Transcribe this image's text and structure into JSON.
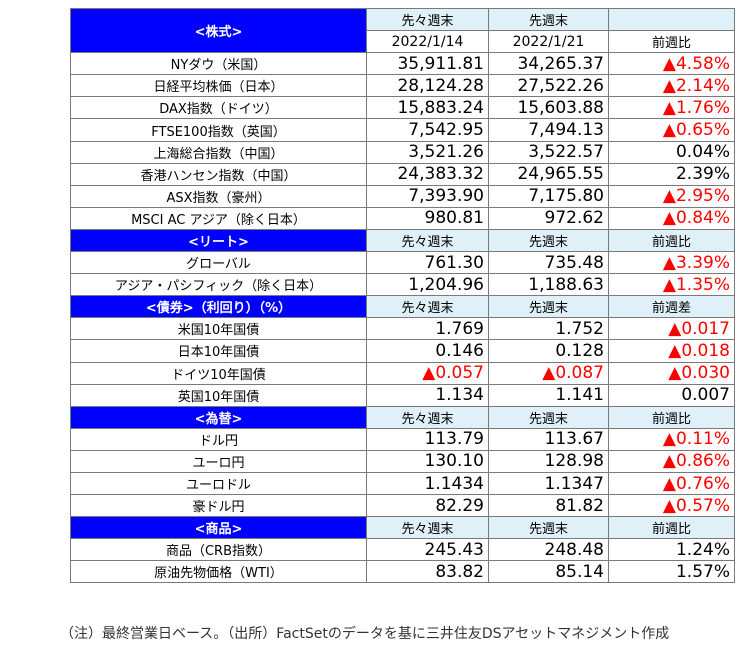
{
  "sections": [
    {
      "title": "<株式>",
      "col1_line1": "先々週末",
      "col1_line2": "2022/1/14",
      "col2_line1": "先週末",
      "col2_line2": "2022/1/21",
      "col3_line1": "",
      "col3_line2": "前週比",
      "rows": [
        {
          "name": "NYダウ（米国）",
          "v1": "35,911.81",
          "v2": "34,265.37",
          "chg": "▲4.58%",
          "neg1": false,
          "neg2": false,
          "negc": true
        },
        {
          "name": "日経平均株価（日本）",
          "v1": "28,124.28",
          "v2": "27,522.26",
          "chg": "▲2.14%",
          "neg1": false,
          "neg2": false,
          "negc": true
        },
        {
          "name": "DAX指数（ドイツ）",
          "v1": "15,883.24",
          "v2": "15,603.88",
          "chg": "▲1.76%",
          "neg1": false,
          "neg2": false,
          "negc": true
        },
        {
          "name": "FTSE100指数（英国）",
          "v1": "7,542.95",
          "v2": "7,494.13",
          "chg": "▲0.65%",
          "neg1": false,
          "neg2": false,
          "negc": true
        },
        {
          "name": "上海総合指数（中国）",
          "v1": "3,521.26",
          "v2": "3,522.57",
          "chg": "0.04%",
          "neg1": false,
          "neg2": false,
          "negc": false
        },
        {
          "name": "香港ハンセン指数（中国）",
          "v1": "24,383.32",
          "v2": "24,965.55",
          "chg": "2.39%",
          "neg1": false,
          "neg2": false,
          "negc": false
        },
        {
          "name": "ASX指数（豪州）",
          "v1": "7,393.90",
          "v2": "7,175.80",
          "chg": "▲2.95%",
          "neg1": false,
          "neg2": false,
          "negc": true
        },
        {
          "name": "MSCI AC アジア（除く日本）",
          "v1": "980.81",
          "v2": "972.62",
          "chg": "▲0.84%",
          "neg1": false,
          "neg2": false,
          "negc": true
        }
      ]
    },
    {
      "title": "<リート>",
      "col1": "先々週末",
      "col2": "先週末",
      "col3": "前週比",
      "rows": [
        {
          "name": "グローバル",
          "v1": "761.30",
          "v2": "735.48",
          "chg": "▲3.39%",
          "neg1": false,
          "neg2": false,
          "negc": true
        },
        {
          "name": "アジア・パシフィック（除く日本）",
          "v1": "1,204.96",
          "v2": "1,188.63",
          "chg": "▲1.35%",
          "neg1": false,
          "neg2": false,
          "negc": true
        }
      ]
    },
    {
      "title": "<債券>（利回り）（%）",
      "col1": "先々週末",
      "col2": "先週末",
      "col3": "前週差",
      "rows": [
        {
          "name": "米国10年国債",
          "v1": "1.769",
          "v2": "1.752",
          "chg": "▲0.017",
          "neg1": false,
          "neg2": false,
          "negc": true
        },
        {
          "name": "日本10年国債",
          "v1": "0.146",
          "v2": "0.128",
          "chg": "▲0.018",
          "neg1": false,
          "neg2": false,
          "negc": true
        },
        {
          "name": "ドイツ10年国債",
          "v1": "▲0.057",
          "v2": "▲0.087",
          "chg": "▲0.030",
          "neg1": true,
          "neg2": true,
          "negc": true
        },
        {
          "name": "英国10年国債",
          "v1": "1.134",
          "v2": "1.141",
          "chg": "0.007",
          "neg1": false,
          "neg2": false,
          "negc": false
        }
      ]
    },
    {
      "title": "<為替>",
      "col1": "先々週末",
      "col2": "先週末",
      "col3": "前週比",
      "rows": [
        {
          "name": "ドル円",
          "v1": "113.79",
          "v2": "113.67",
          "chg": "▲0.11%",
          "neg1": false,
          "neg2": false,
          "negc": true
        },
        {
          "name": "ユーロ円",
          "v1": "130.10",
          "v2": "128.98",
          "chg": "▲0.86%",
          "neg1": false,
          "neg2": false,
          "negc": true
        },
        {
          "name": "ユーロドル",
          "v1": "1.1434",
          "v2": "1.1347",
          "chg": "▲0.76%",
          "neg1": false,
          "neg2": false,
          "negc": true
        },
        {
          "name": "豪ドル円",
          "v1": "82.29",
          "v2": "81.82",
          "chg": "▲0.57%",
          "neg1": false,
          "neg2": false,
          "negc": true
        }
      ]
    },
    {
      "title": "<商品>",
      "col1": "先々週末",
      "col2": "先週末",
      "col3": "前週比",
      "rows": [
        {
          "name": "商品（CRB指数）",
          "v1": "245.43",
          "v2": "248.48",
          "chg": "1.24%",
          "neg1": false,
          "neg2": false,
          "negc": false
        },
        {
          "name": "原油先物価格（WTI）",
          "v1": "83.82",
          "v2": "85.14",
          "chg": "1.57%",
          "neg1": false,
          "neg2": false,
          "negc": false
        }
      ]
    }
  ],
  "footnote": "（注）最終営業日ベース。（出所）FactSetのデータを基に三井住友DSアセットマネジメント作成",
  "colors": {
    "header_blue": "#0000ff",
    "header_light": "#dff0f8",
    "negative_red": "#ff0000",
    "border": "#7a7a7a"
  }
}
